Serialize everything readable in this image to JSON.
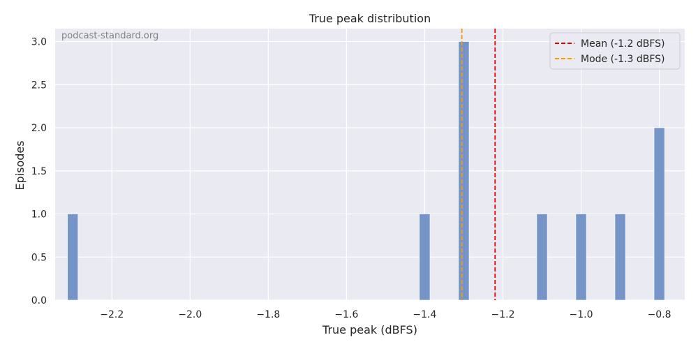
{
  "chart_data": {
    "type": "bar",
    "title": "True peak distribution",
    "xlabel": "True peak (dBFS)",
    "ylabel": "Episodes",
    "xlim": [
      -2.345,
      -0.735
    ],
    "ylim": [
      0,
      3.15
    ],
    "xticks": [
      -2.2,
      -2.0,
      -1.8,
      -1.6,
      -1.4,
      -1.2,
      -1.0,
      -0.8
    ],
    "xtick_labels": [
      "−2.2",
      "−2.0",
      "−1.8",
      "−1.6",
      "−1.4",
      "−1.2",
      "−1.0",
      "−0.8"
    ],
    "yticks": [
      0,
      0.5,
      1.0,
      1.5,
      2.0,
      2.5,
      3.0
    ],
    "ytick_labels": [
      "0.0",
      "0.5",
      "1.0",
      "1.5",
      "2.0",
      "2.5",
      "3.0"
    ],
    "bin_width": 0.027,
    "bars": [
      {
        "x": -2.3,
        "value": 1
      },
      {
        "x": -1.4,
        "value": 1
      },
      {
        "x": -1.3,
        "value": 3
      },
      {
        "x": -1.1,
        "value": 1
      },
      {
        "x": -1.0,
        "value": 1
      },
      {
        "x": -0.9,
        "value": 1
      },
      {
        "x": -0.8,
        "value": 2
      }
    ],
    "reference_lines": [
      {
        "name": "Mean (-1.2 dBFS)",
        "x": -1.22,
        "color": "#e50000"
      },
      {
        "name": "Mode (-1.3 dBFS)",
        "x": -1.305,
        "color": "#ff9900"
      }
    ],
    "grid": true,
    "legend_position": "top-right",
    "bar_color": "#6f8fc4",
    "background_color": "#eaeaf2",
    "grid_color": "#ffffff"
  },
  "watermark": "podcast-standard.org"
}
